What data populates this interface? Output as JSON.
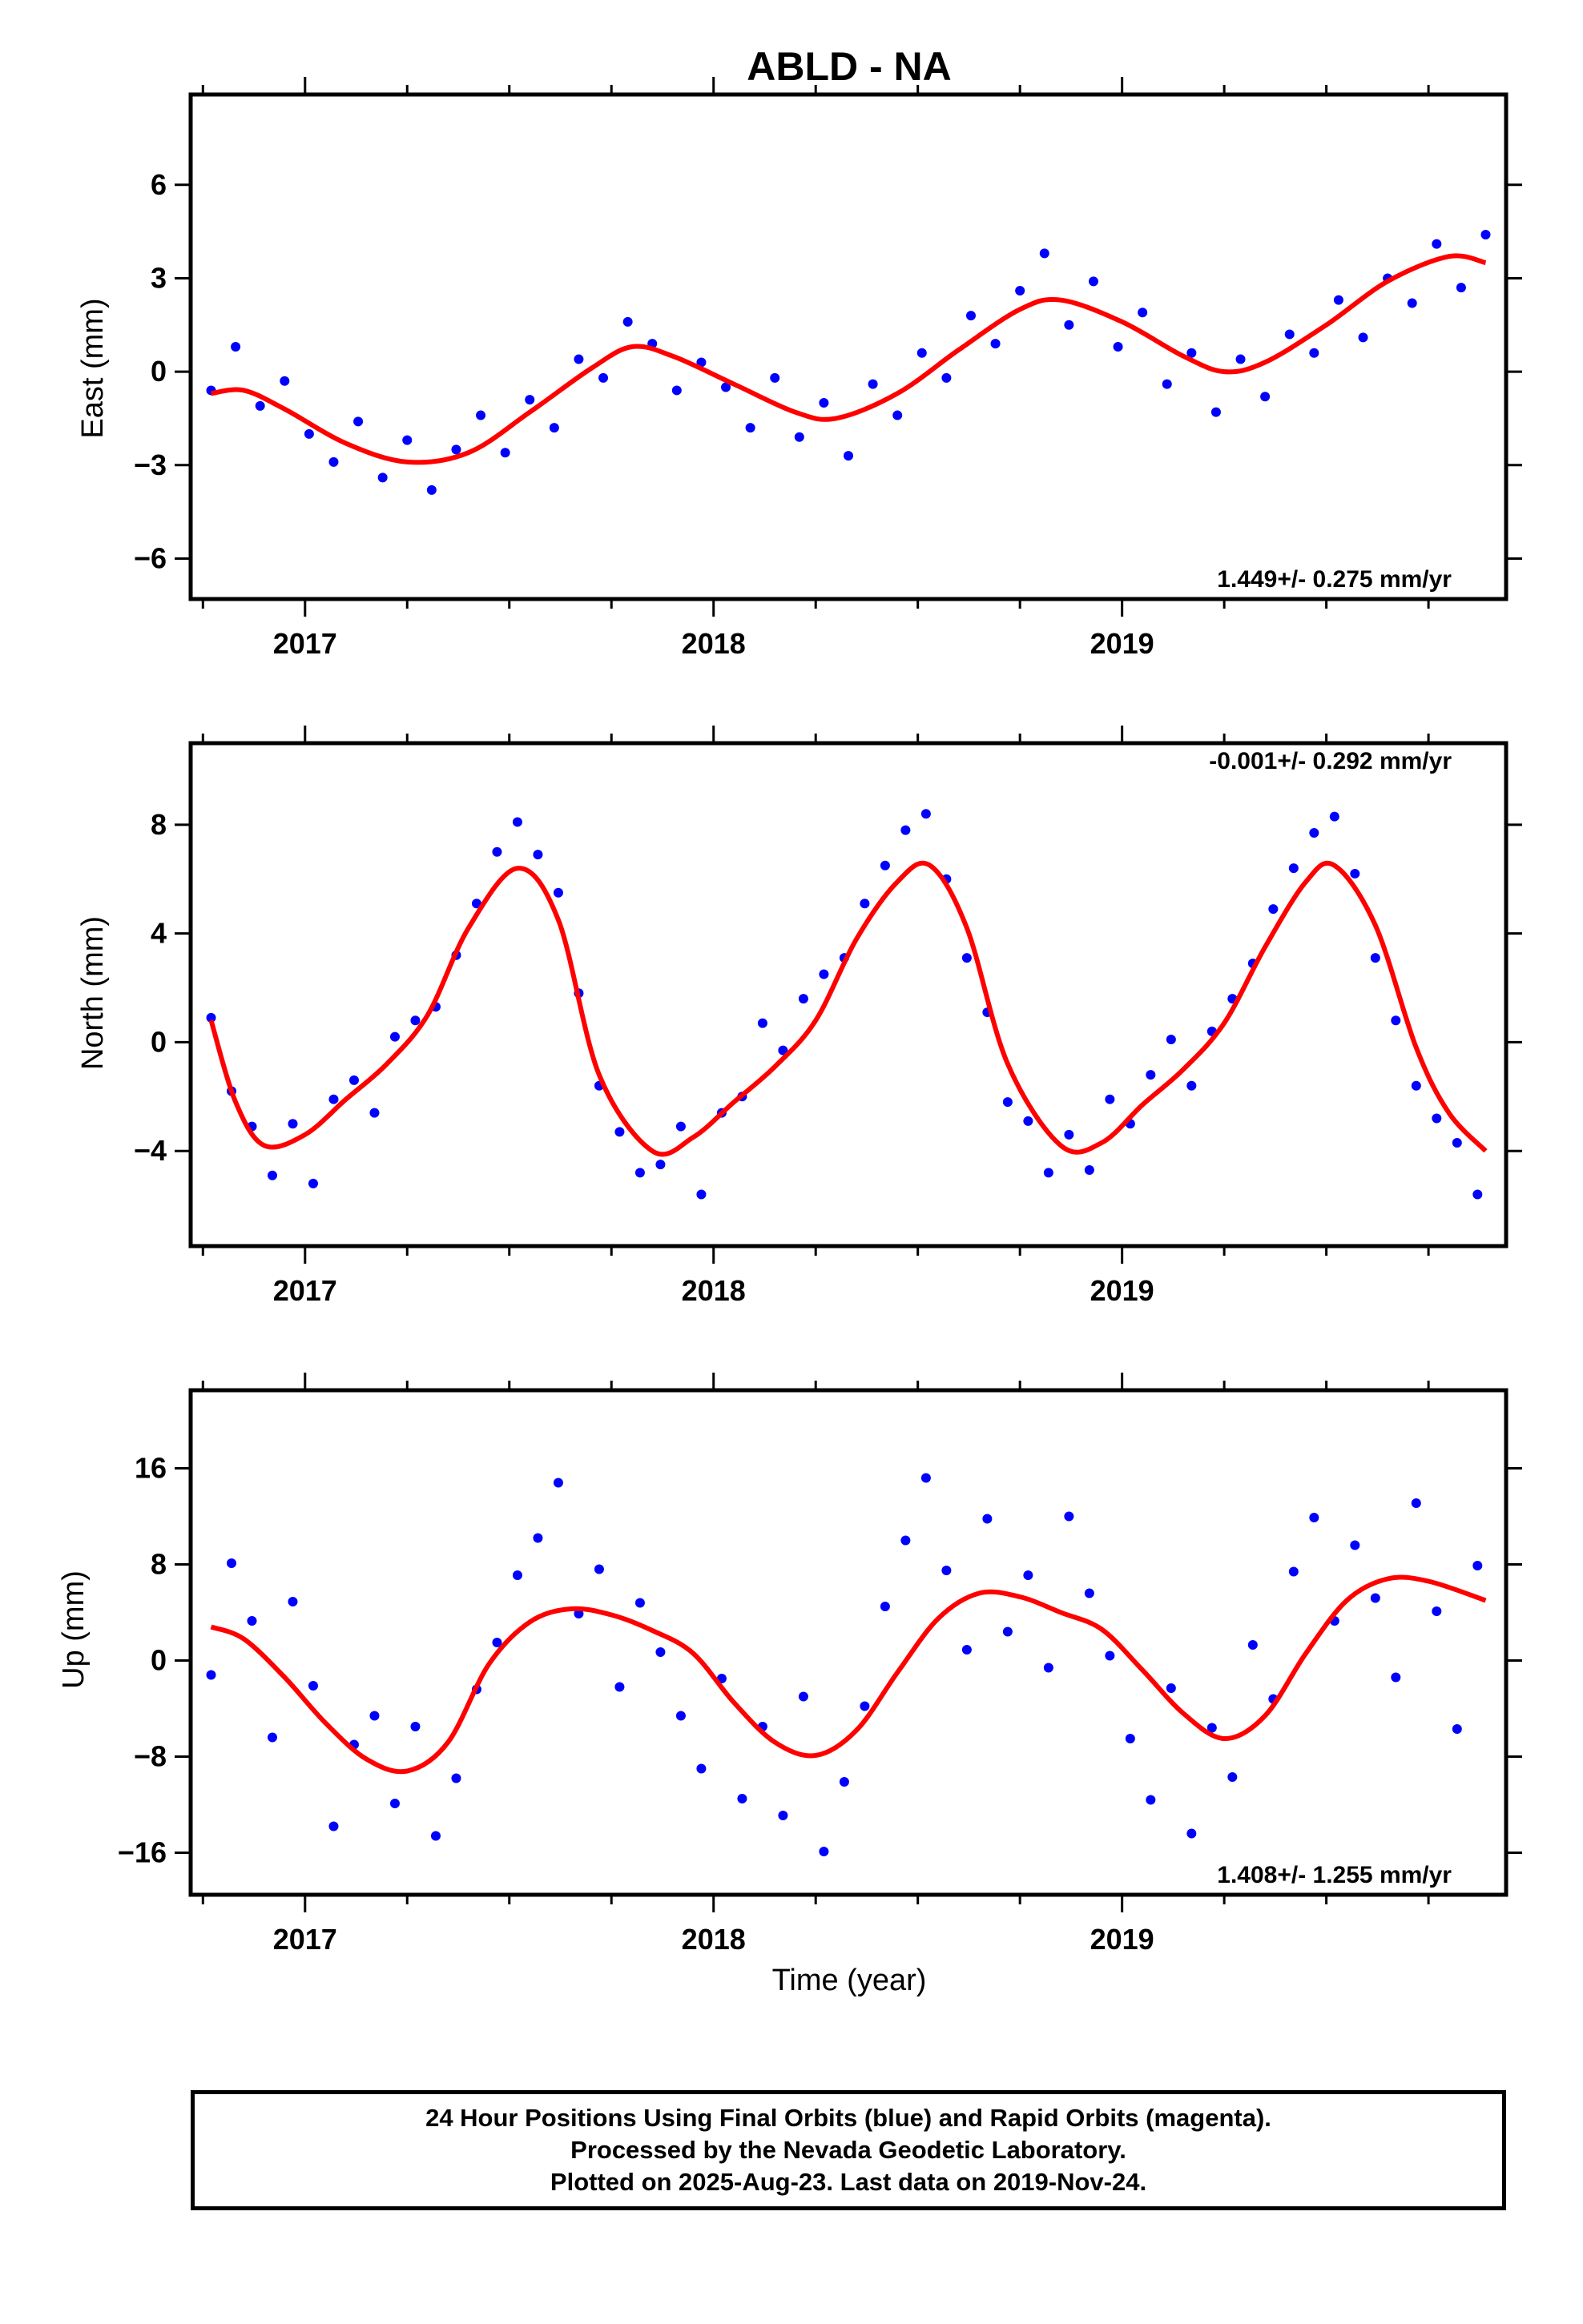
{
  "title": "ABLD - NA",
  "xlabel": "Time (year)",
  "footer": [
    "24 Hour Positions Using Final Orbits (blue) and Rapid Orbits (magenta).",
    "Processed by the Nevada Geodetic Laboratory.",
    "Plotted on 2025-Aug-23. Last data on 2019-Nov-24."
  ],
  "colors": {
    "points": "#0000ff",
    "fit": "#ff0000",
    "frame": "#000000"
  },
  "chart_data": [
    {
      "type": "scatter",
      "ylabel": "East (mm)",
      "rate_label": "1.449+/- 0.275 mm/yr",
      "xlim": [
        2016.72,
        2019.94
      ],
      "ylim": [
        -7.3,
        8.9
      ],
      "x_ticks": [
        2017,
        2018,
        2019
      ],
      "y_ticks": [
        -6,
        -3,
        0,
        3,
        6
      ],
      "grid": false,
      "series": [
        {
          "kind": "fit_curve",
          "x": [
            2016.77,
            2016.85,
            2016.95,
            2017.1,
            2017.25,
            2017.4,
            2017.55,
            2017.7,
            2017.8,
            2017.9,
            2018.05,
            2018.2,
            2018.3,
            2018.45,
            2018.6,
            2018.75,
            2018.85,
            2019.0,
            2019.15,
            2019.25,
            2019.35,
            2019.5,
            2019.65,
            2019.8,
            2019.89
          ],
          "y": [
            -0.7,
            -0.6,
            -1.2,
            -2.3,
            -2.9,
            -2.6,
            -1.3,
            0.1,
            0.8,
            0.5,
            -0.4,
            -1.3,
            -1.5,
            -0.7,
            0.7,
            2.0,
            2.3,
            1.6,
            0.5,
            0.0,
            0.3,
            1.5,
            2.9,
            3.7,
            3.5
          ]
        },
        {
          "kind": "daily_positions",
          "x": [
            2016.77,
            2016.83,
            2016.89,
            2016.95,
            2017.01,
            2017.07,
            2017.13,
            2017.19,
            2017.25,
            2017.31,
            2017.37,
            2017.43,
            2017.49,
            2017.55,
            2017.61,
            2017.67,
            2017.73,
            2017.79,
            2017.85,
            2017.91,
            2017.97,
            2018.03,
            2018.09,
            2018.15,
            2018.21,
            2018.27,
            2018.33,
            2018.39,
            2018.45,
            2018.51,
            2018.57,
            2018.63,
            2018.69,
            2018.75,
            2018.81,
            2018.87,
            2018.93,
            2018.99,
            2019.05,
            2019.11,
            2019.17,
            2019.23,
            2019.29,
            2019.35,
            2019.41,
            2019.47,
            2019.53,
            2019.59,
            2019.65,
            2019.71,
            2019.77,
            2019.83,
            2019.89
          ],
          "y": [
            -0.6,
            0.8,
            -1.1,
            -0.3,
            -2.0,
            -2.9,
            -1.6,
            -3.4,
            -2.2,
            -3.8,
            -2.5,
            -1.4,
            -2.6,
            -0.9,
            -1.8,
            0.4,
            -0.2,
            1.6,
            0.9,
            -0.6,
            0.3,
            -0.5,
            -1.8,
            -0.2,
            -2.1,
            -1.0,
            -2.7,
            -0.4,
            -1.4,
            0.6,
            -0.2,
            1.8,
            0.9,
            2.6,
            3.8,
            1.5,
            2.9,
            0.8,
            1.9,
            -0.4,
            0.6,
            -1.3,
            0.4,
            -0.8,
            1.2,
            0.6,
            2.3,
            1.1,
            3.0,
            2.2,
            4.1,
            2.7,
            4.4
          ]
        }
      ]
    },
    {
      "type": "scatter",
      "ylabel": "North (mm)",
      "rate_label": "-0.001+/- 0.292 mm/yr",
      "xlim": [
        2016.72,
        2019.94
      ],
      "ylim": [
        -7.5,
        11.0
      ],
      "x_ticks": [
        2017,
        2018,
        2019
      ],
      "y_ticks": [
        -4,
        0,
        4,
        8
      ],
      "grid": false,
      "series": [
        {
          "kind": "fit_curve",
          "x": [
            2016.77,
            2016.83,
            2016.9,
            2017.0,
            2017.1,
            2017.2,
            2017.3,
            2017.4,
            2017.52,
            2017.62,
            2017.72,
            2017.85,
            2017.95,
            2018.05,
            2018.15,
            2018.25,
            2018.35,
            2018.45,
            2018.53,
            2018.62,
            2018.72,
            2018.85,
            2018.95,
            2019.05,
            2019.15,
            2019.25,
            2019.35,
            2019.45,
            2019.52,
            2019.62,
            2019.72,
            2019.8,
            2019.89
          ],
          "y": [
            0.8,
            -2.2,
            -3.8,
            -3.4,
            -2.1,
            -0.8,
            1.0,
            4.2,
            6.4,
            4.5,
            -1.2,
            -4.0,
            -3.5,
            -2.2,
            -0.9,
            0.8,
            3.8,
            5.9,
            6.5,
            4.2,
            -0.8,
            -3.8,
            -3.7,
            -2.3,
            -1.0,
            0.7,
            3.5,
            5.9,
            6.5,
            4.3,
            -0.2,
            -2.6,
            -4.0
          ]
        },
        {
          "kind": "daily_positions",
          "x": [
            2016.77,
            2016.82,
            2016.87,
            2016.92,
            2016.97,
            2017.02,
            2017.07,
            2017.12,
            2017.17,
            2017.22,
            2017.27,
            2017.32,
            2017.37,
            2017.42,
            2017.47,
            2017.52,
            2017.57,
            2017.62,
            2017.67,
            2017.72,
            2017.77,
            2017.82,
            2017.87,
            2017.92,
            2017.97,
            2018.02,
            2018.07,
            2018.12,
            2018.17,
            2018.22,
            2018.27,
            2018.32,
            2018.37,
            2018.42,
            2018.47,
            2018.52,
            2018.57,
            2018.62,
            2018.67,
            2018.72,
            2018.77,
            2018.82,
            2018.87,
            2018.92,
            2018.97,
            2019.02,
            2019.07,
            2019.12,
            2019.17,
            2019.22,
            2019.27,
            2019.32,
            2019.37,
            2019.42,
            2019.47,
            2019.52,
            2019.57,
            2019.62,
            2019.67,
            2019.72,
            2019.77,
            2019.82,
            2019.87
          ],
          "y": [
            0.9,
            -1.8,
            -3.1,
            -4.9,
            -3.0,
            -5.2,
            -2.1,
            -1.4,
            -2.6,
            0.2,
            0.8,
            1.3,
            3.2,
            5.1,
            7.0,
            8.1,
            6.9,
            5.5,
            1.8,
            -1.6,
            -3.3,
            -4.8,
            -4.5,
            -3.1,
            -5.6,
            -2.6,
            -2.0,
            0.7,
            -0.3,
            1.6,
            2.5,
            3.1,
            5.1,
            6.5,
            7.8,
            8.4,
            6.0,
            3.1,
            1.1,
            -2.2,
            -2.9,
            -4.8,
            -3.4,
            -4.7,
            -2.1,
            -3.0,
            -1.2,
            0.1,
            -1.6,
            0.4,
            1.6,
            2.9,
            4.9,
            6.4,
            7.7,
            8.3,
            6.2,
            3.1,
            0.8,
            -1.6,
            -2.8,
            -3.7,
            -5.6
          ]
        }
      ]
    },
    {
      "type": "scatter",
      "ylabel": "Up (mm)",
      "rate_label": "1.408+/- 1.255 mm/yr",
      "xlim": [
        2016.72,
        2019.94
      ],
      "ylim": [
        -19.5,
        22.5
      ],
      "x_ticks": [
        2017,
        2018,
        2019
      ],
      "y_ticks": [
        -16,
        -8,
        0,
        8,
        16
      ],
      "grid": false,
      "series": [
        {
          "kind": "fit_curve",
          "x": [
            2016.77,
            2016.85,
            2016.95,
            2017.05,
            2017.15,
            2017.25,
            2017.35,
            2017.45,
            2017.55,
            2017.65,
            2017.75,
            2017.85,
            2017.95,
            2018.05,
            2018.15,
            2018.25,
            2018.35,
            2018.45,
            2018.55,
            2018.65,
            2018.75,
            2018.85,
            2018.95,
            2019.05,
            2019.15,
            2019.25,
            2019.35,
            2019.45,
            2019.55,
            2019.65,
            2019.75,
            2019.89
          ],
          "y": [
            2.8,
            1.8,
            -1.4,
            -5.2,
            -8.2,
            -9.2,
            -6.8,
            -0.3,
            3.2,
            4.3,
            3.8,
            2.5,
            0.6,
            -3.5,
            -6.8,
            -7.9,
            -5.8,
            -1.0,
            3.5,
            5.6,
            5.3,
            4.0,
            2.6,
            -0.8,
            -4.4,
            -6.5,
            -4.6,
            0.6,
            5.0,
            6.8,
            6.6,
            5.0
          ]
        },
        {
          "kind": "daily_positions",
          "x": [
            2016.77,
            2016.82,
            2016.87,
            2016.92,
            2016.97,
            2017.02,
            2017.07,
            2017.12,
            2017.17,
            2017.22,
            2017.27,
            2017.32,
            2017.37,
            2017.42,
            2017.47,
            2017.52,
            2017.57,
            2017.62,
            2017.67,
            2017.72,
            2017.77,
            2017.82,
            2017.87,
            2017.92,
            2017.97,
            2018.02,
            2018.07,
            2018.12,
            2018.17,
            2018.22,
            2018.27,
            2018.32,
            2018.37,
            2018.42,
            2018.47,
            2018.52,
            2018.57,
            2018.62,
            2018.67,
            2018.72,
            2018.77,
            2018.82,
            2018.87,
            2018.92,
            2018.97,
            2019.02,
            2019.07,
            2019.12,
            2019.17,
            2019.22,
            2019.27,
            2019.32,
            2019.37,
            2019.42,
            2019.47,
            2019.52,
            2019.57,
            2019.62,
            2019.67,
            2019.72,
            2019.77,
            2019.82,
            2019.87
          ],
          "y": [
            -1.2,
            8.1,
            3.3,
            -6.4,
            4.9,
            -2.1,
            -13.8,
            -7.0,
            -4.6,
            -11.9,
            -5.5,
            -14.6,
            -9.8,
            -2.4,
            1.5,
            7.1,
            10.2,
            14.8,
            3.9,
            7.6,
            -2.2,
            4.8,
            0.7,
            -4.6,
            -9.0,
            -1.5,
            -11.5,
            -5.5,
            -12.9,
            -3.0,
            -15.9,
            -10.1,
            -3.8,
            4.5,
            10.0,
            15.2,
            7.5,
            0.9,
            11.8,
            2.4,
            7.1,
            -0.6,
            12.0,
            5.6,
            0.4,
            -6.5,
            -11.6,
            -2.3,
            -14.4,
            -5.6,
            -9.7,
            1.3,
            -3.2,
            7.4,
            11.9,
            3.3,
            9.6,
            5.2,
            -1.4,
            13.1,
            4.1,
            -5.7,
            7.9
          ]
        }
      ]
    }
  ]
}
